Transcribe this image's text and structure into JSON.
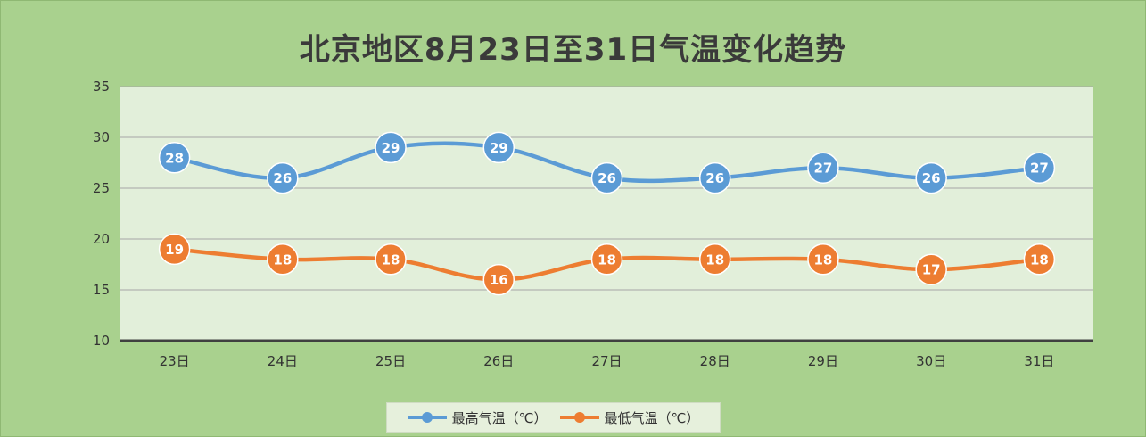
{
  "chart_data": {
    "type": "line",
    "title": "北京地区8月23日至31日气温变化趋势",
    "categories": [
      "23日",
      "24日",
      "25日",
      "26日",
      "27日",
      "28日",
      "29日",
      "30日",
      "31日"
    ],
    "series": [
      {
        "name": "最高气温（℃）",
        "color": "#5b9bd5",
        "values": [
          28,
          26,
          29,
          29,
          26,
          26,
          27,
          26,
          27
        ]
      },
      {
        "name": "最低气温（℃）",
        "color": "#ed7d31",
        "values": [
          19,
          18,
          18,
          16,
          18,
          18,
          18,
          17,
          18
        ]
      }
    ],
    "ylim": [
      10,
      35
    ],
    "yticks": [
      10,
      15,
      20,
      25,
      30,
      35
    ],
    "grid": true,
    "smooth": true,
    "data_labels": true,
    "legend_position": "bottom",
    "colors": {
      "background": "#a9d18e",
      "plot_area": "#e2efda"
    }
  }
}
